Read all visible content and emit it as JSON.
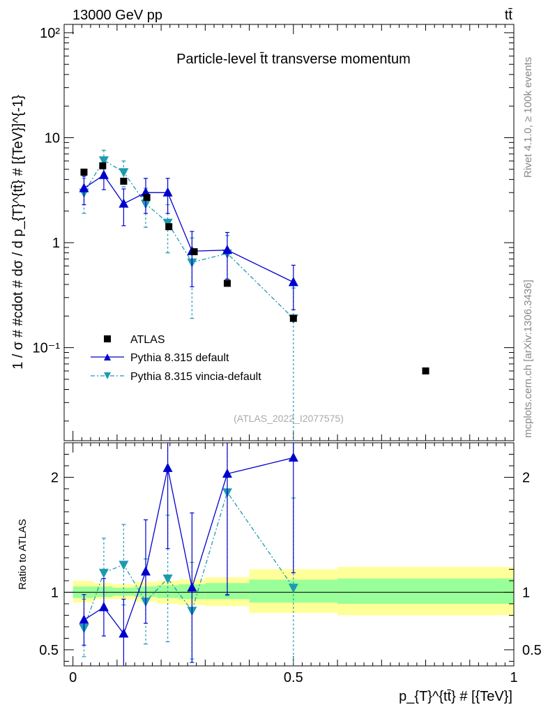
{
  "header": {
    "energy": "13000 GeV pp",
    "process": "tt̄"
  },
  "side": {
    "rivet": "Rivet 4.1.0, ≥ 100k events",
    "source": "mcplots.cern.ch [arXiv:1306.3436]"
  },
  "colors": {
    "atlas": "#000000",
    "pythia_default": "#0000cc",
    "vincia": "#1e9ab0",
    "band_inner": "#99ff99",
    "band_outer": "#ffff99"
  },
  "chart_data": [
    {
      "type": "scatter",
      "title": "Particle-level t̄t transverse momentum",
      "watermark": "(ATLAS_2022_I2077575)",
      "ylabel": "1 / σ # #cdot # dσ / d p_{T}^{tt̄} # [{TeV}]^{-1}",
      "yscale": "log",
      "ylim": [
        0.013,
        120
      ],
      "xlim": [
        -0.02,
        1.0
      ],
      "yticks": [
        {
          "v": 0.1,
          "label": "10⁻¹"
        },
        {
          "v": 1,
          "label": "1"
        },
        {
          "v": 10,
          "label": "10"
        },
        {
          "v": 100,
          "label": "10²"
        }
      ],
      "legend_position": "lower-left",
      "series": [
        {
          "name": "ATLAS",
          "style": "square",
          "x": [
            0.025,
            0.0675,
            0.115,
            0.1675,
            0.2175,
            0.275,
            0.35,
            0.5,
            0.8
          ],
          "y": [
            4.7,
            5.4,
            3.85,
            2.7,
            1.42,
            0.82,
            0.41,
            0.19,
            0.06
          ]
        },
        {
          "name": "Pythia 8.315 default",
          "style": "triangle-up",
          "x": [
            0.025,
            0.07,
            0.115,
            0.165,
            0.215,
            0.27,
            0.35,
            0.5
          ],
          "y": [
            3.3,
            4.4,
            2.35,
            3.0,
            3.0,
            0.83,
            0.85,
            0.42
          ],
          "err": [
            1.0,
            1.2,
            0.9,
            1.1,
            1.1,
            0.45,
            0.4,
            0.19
          ]
        },
        {
          "name": "Pythia 8.315 vincia-default",
          "style": "triangle-down",
          "x": [
            0.025,
            0.07,
            0.115,
            0.165,
            0.215,
            0.27,
            0.35,
            0.5
          ],
          "y": [
            3.0,
            6.1,
            4.7,
            2.35,
            1.55,
            0.65,
            0.79,
            0.19
          ],
          "err": [
            1.1,
            1.5,
            1.3,
            0.95,
            0.75,
            0.46,
            0.38,
            0.18
          ]
        }
      ]
    },
    {
      "type": "scatter",
      "ylabel": "Ratio to ATLAS",
      "xlabel": "p_{T}^{tt̄} # [{TeV}]",
      "xlim": [
        -0.02,
        1.0
      ],
      "ylim": [
        0.36,
        2.3
      ],
      "xticks": [
        {
          "v": 0,
          "label": "0"
        },
        {
          "v": 0.5,
          "label": "0.5"
        },
        {
          "v": 1,
          "label": "1"
        }
      ],
      "yticks": [
        {
          "v": 0.5,
          "label": "0.5"
        },
        {
          "v": 1,
          "label": "1"
        },
        {
          "v": 2,
          "label": "2"
        }
      ],
      "bands": [
        {
          "x0": 0.0,
          "x1": 0.045,
          "in": [
            0.95,
            1.05
          ],
          "out": [
            0.91,
            1.1
          ]
        },
        {
          "x0": 0.045,
          "x1": 0.09,
          "in": [
            0.96,
            1.05
          ],
          "out": [
            0.94,
            1.08
          ]
        },
        {
          "x0": 0.09,
          "x1": 0.14,
          "in": [
            0.97,
            1.04
          ],
          "out": [
            0.94,
            1.07
          ]
        },
        {
          "x0": 0.14,
          "x1": 0.19,
          "in": [
            0.96,
            1.05
          ],
          "out": [
            0.92,
            1.09
          ]
        },
        {
          "x0": 0.19,
          "x1": 0.24,
          "in": [
            0.95,
            1.06
          ],
          "out": [
            0.9,
            1.1
          ]
        },
        {
          "x0": 0.24,
          "x1": 0.3,
          "in": [
            0.94,
            1.07
          ],
          "out": [
            0.89,
            1.11
          ]
        },
        {
          "x0": 0.3,
          "x1": 0.4,
          "in": [
            0.94,
            1.08
          ],
          "out": [
            0.88,
            1.13
          ]
        },
        {
          "x0": 0.4,
          "x1": 0.6,
          "in": [
            0.91,
            1.11
          ],
          "out": [
            0.82,
            1.2
          ]
        },
        {
          "x0": 0.6,
          "x1": 1.0,
          "in": [
            0.9,
            1.12
          ],
          "out": [
            0.8,
            1.22
          ]
        }
      ],
      "series": [
        {
          "name": "Pythia 8.315 default",
          "style": "triangle-up",
          "x": [
            0.025,
            0.07,
            0.115,
            0.165,
            0.215,
            0.27,
            0.35,
            0.5
          ],
          "y": [
            0.76,
            0.87,
            0.64,
            1.18,
            2.08,
            1.04,
            2.03,
            2.17
          ],
          "err": [
            0.22,
            0.25,
            0.3,
            0.45,
            0.7,
            0.65,
            1.05,
            1.0
          ]
        },
        {
          "name": "Pythia 8.315 vincia-default",
          "style": "triangle-down",
          "x": [
            0.025,
            0.07,
            0.115,
            0.165,
            0.215,
            0.27,
            0.35,
            0.5
          ],
          "y": [
            0.69,
            1.17,
            1.24,
            0.92,
            1.12,
            0.84,
            1.87,
            1.04
          ],
          "err": [
            0.25,
            0.3,
            0.35,
            0.37,
            0.55,
            0.42,
            0.9,
            0.78
          ]
        }
      ]
    }
  ]
}
